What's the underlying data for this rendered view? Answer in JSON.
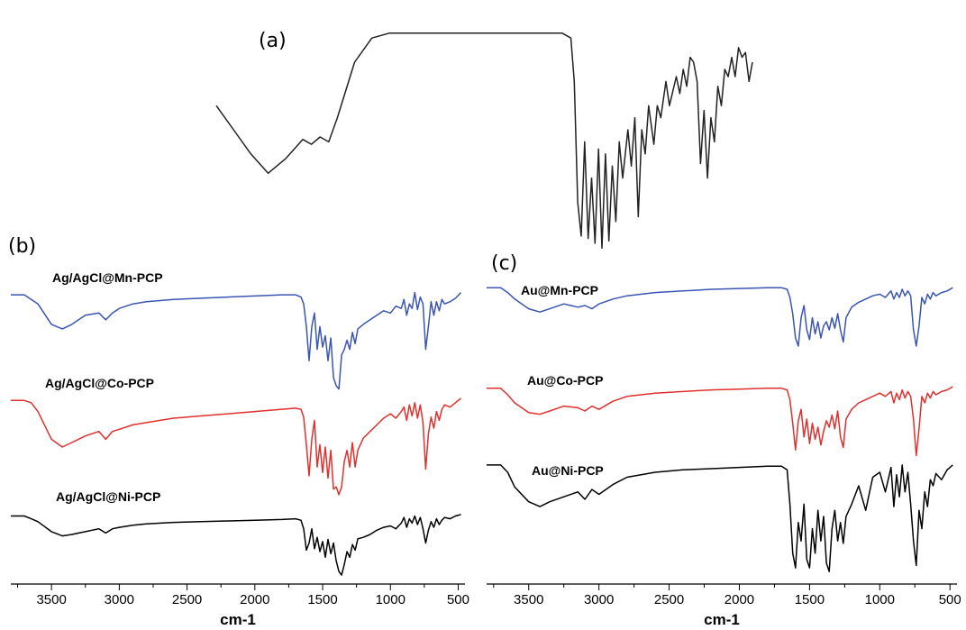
{
  "figure": {
    "panels": [
      {
        "id": "a",
        "label": "(a)",
        "traces": [
          {
            "name": "",
            "color": "#222222"
          }
        ]
      },
      {
        "id": "b",
        "label": "(b)",
        "traces": [
          {
            "name": "Ag/AgCl@Mn-PCP",
            "color": "#3a55b4"
          },
          {
            "name": "Ag/AgCl@Co-PCP",
            "color": "#e0302e"
          },
          {
            "name": "Ag/AgCl@Ni-PCP",
            "color": "#000000"
          }
        ]
      },
      {
        "id": "c",
        "label": "(c)",
        "traces": [
          {
            "name": "Au@Mn-PCP",
            "color": "#3a55b4"
          },
          {
            "name": "Au@Co-PCP",
            "color": "#e0302e"
          },
          {
            "name": "Au@Ni-PCP",
            "color": "#000000"
          }
        ]
      }
    ]
  },
  "chart_data": [
    {
      "type": "line",
      "panel": "(a)",
      "title": "",
      "xlabel": "",
      "ylabel": "",
      "x_axis_shown": false,
      "series": [
        {
          "name": "",
          "x": [
            3700,
            3600,
            3500,
            3400,
            3300,
            3200,
            3150,
            3100,
            3050,
            3000,
            2900,
            2800,
            2700,
            2600,
            2500,
            2400,
            2300,
            2200,
            2100,
            2000,
            1900,
            1800,
            1700,
            1650,
            1630,
            1610,
            1590,
            1570,
            1550,
            1530,
            1510,
            1490,
            1470,
            1450,
            1430,
            1410,
            1390,
            1370,
            1350,
            1320,
            1300,
            1280,
            1260,
            1240,
            1220,
            1200,
            1170,
            1150,
            1130,
            1100,
            1080,
            1060,
            1040,
            1020,
            1000,
            980,
            960,
            940,
            920,
            900,
            880,
            860,
            840,
            820,
            800,
            780,
            760,
            740,
            720,
            700,
            680,
            660,
            640,
            620,
            600
          ],
          "y": [
            60,
            50,
            40,
            32,
            38,
            46,
            44,
            47,
            45,
            55,
            78,
            88,
            90,
            90,
            90,
            90,
            90,
            90,
            90,
            90,
            90,
            90,
            90,
            88,
            70,
            20,
            6,
            45,
            5,
            30,
            3,
            42,
            1,
            40,
            4,
            35,
            12,
            45,
            30,
            50,
            35,
            55,
            14,
            50,
            40,
            60,
            44,
            60,
            55,
            70,
            60,
            66,
            72,
            65,
            75,
            68,
            80,
            78,
            70,
            36,
            58,
            30,
            55,
            45,
            68,
            60,
            75,
            72,
            80,
            72,
            84,
            80,
            82,
            70,
            78
          ]
        }
      ]
    },
    {
      "type": "line",
      "panel": "(b)",
      "title": "",
      "xlabel": "cm-1",
      "ylabel": "",
      "xlim": [
        3800,
        450
      ],
      "x_reversed": true,
      "xticks": [
        3500,
        3000,
        2500,
        2000,
        1500,
        1000,
        500
      ],
      "series": [
        {
          "name": "Ag/AgCl@Mn-PCP",
          "x": [
            3800,
            3700,
            3600,
            3500,
            3420,
            3350,
            3250,
            3150,
            3100,
            3050,
            3000,
            2900,
            2800,
            2600,
            2400,
            2200,
            2000,
            1800,
            1700,
            1660,
            1640,
            1620,
            1600,
            1580,
            1560,
            1540,
            1520,
            1500,
            1480,
            1460,
            1440,
            1420,
            1400,
            1380,
            1360,
            1340,
            1320,
            1300,
            1280,
            1260,
            1240,
            1200,
            1150,
            1100,
            1050,
            1000,
            960,
            920,
            900,
            880,
            860,
            840,
            820,
            800,
            780,
            760,
            740,
            720,
            700,
            680,
            660,
            640,
            620,
            600,
            560,
            520,
            480
          ],
          "y": [
            88,
            88,
            80,
            62,
            58,
            62,
            70,
            72,
            66,
            72,
            76,
            80,
            82,
            84,
            85,
            86,
            87,
            88,
            88,
            86,
            80,
            60,
            30,
            60,
            72,
            40,
            60,
            42,
            52,
            30,
            50,
            15,
            8,
            5,
            35,
            40,
            48,
            40,
            55,
            45,
            58,
            62,
            66,
            70,
            74,
            72,
            78,
            76,
            84,
            70,
            80,
            76,
            90,
            75,
            86,
            80,
            40,
            60,
            82,
            70,
            82,
            74,
            84,
            80,
            82,
            85,
            90
          ]
        },
        {
          "name": "Ag/AgCl@Co-PCP",
          "x": [
            3800,
            3700,
            3650,
            3600,
            3500,
            3420,
            3350,
            3250,
            3150,
            3100,
            3050,
            3000,
            2900,
            2800,
            2600,
            2400,
            2200,
            2000,
            1800,
            1700,
            1660,
            1640,
            1620,
            1600,
            1580,
            1560,
            1540,
            1520,
            1500,
            1480,
            1460,
            1440,
            1420,
            1400,
            1380,
            1360,
            1340,
            1320,
            1300,
            1280,
            1260,
            1240,
            1200,
            1150,
            1100,
            1050,
            1000,
            960,
            920,
            900,
            880,
            860,
            840,
            820,
            800,
            780,
            760,
            740,
            720,
            700,
            680,
            660,
            640,
            620,
            600,
            560,
            520,
            480
          ],
          "y": [
            90,
            90,
            88,
            80,
            55,
            48,
            52,
            58,
            62,
            55,
            62,
            64,
            68,
            70,
            74,
            76,
            78,
            80,
            82,
            83,
            82,
            75,
            50,
            22,
            55,
            72,
            30,
            50,
            25,
            48,
            20,
            45,
            10,
            12,
            5,
            12,
            35,
            45,
            30,
            52,
            30,
            45,
            56,
            62,
            68,
            74,
            78,
            74,
            80,
            84,
            72,
            86,
            76,
            88,
            74,
            86,
            70,
            28,
            60,
            75,
            65,
            80,
            72,
            82,
            86,
            84,
            88,
            92
          ]
        },
        {
          "name": "Ag/AgCl@Ni-PCP",
          "x": [
            3800,
            3700,
            3650,
            3600,
            3500,
            3420,
            3350,
            3250,
            3150,
            3100,
            3050,
            3000,
            2900,
            2800,
            2600,
            2400,
            2200,
            2000,
            1800,
            1700,
            1660,
            1640,
            1620,
            1600,
            1580,
            1560,
            1540,
            1520,
            1500,
            1480,
            1460,
            1440,
            1420,
            1400,
            1380,
            1360,
            1340,
            1320,
            1300,
            1280,
            1260,
            1240,
            1200,
            1150,
            1100,
            1050,
            1000,
            960,
            920,
            900,
            880,
            860,
            840,
            820,
            800,
            780,
            760,
            740,
            720,
            700,
            680,
            660,
            640,
            620,
            600,
            560,
            520,
            480
          ],
          "y": [
            88,
            88,
            84,
            80,
            66,
            60,
            62,
            66,
            70,
            64,
            70,
            72,
            75,
            77,
            79,
            80,
            81,
            82,
            83,
            84,
            82,
            70,
            40,
            50,
            70,
            42,
            58,
            38,
            52,
            30,
            55,
            35,
            50,
            25,
            10,
            5,
            20,
            38,
            30,
            48,
            40,
            56,
            58,
            62,
            68,
            72,
            74,
            70,
            78,
            86,
            72,
            84,
            78,
            88,
            76,
            86,
            70,
            50,
            68,
            80,
            72,
            84,
            76,
            82,
            86,
            84,
            88,
            90
          ]
        }
      ]
    },
    {
      "type": "line",
      "panel": "(c)",
      "title": "",
      "xlabel": "cm-1",
      "ylabel": "",
      "xlim": [
        3800,
        450
      ],
      "x_reversed": true,
      "xticks": [
        3500,
        3000,
        2500,
        2000,
        1500,
        1000,
        500
      ],
      "series": [
        {
          "name": "Au@Mn-PCP",
          "x": [
            3800,
            3700,
            3650,
            3600,
            3500,
            3420,
            3350,
            3250,
            3150,
            3100,
            3050,
            3000,
            2900,
            2800,
            2600,
            2400,
            2200,
            2000,
            1800,
            1700,
            1660,
            1640,
            1620,
            1600,
            1580,
            1560,
            1540,
            1520,
            1500,
            1480,
            1460,
            1440,
            1420,
            1400,
            1380,
            1360,
            1340,
            1320,
            1300,
            1280,
            1260,
            1240,
            1200,
            1150,
            1100,
            1050,
            1000,
            960,
            920,
            900,
            880,
            860,
            840,
            820,
            800,
            780,
            760,
            740,
            720,
            700,
            680,
            660,
            640,
            620,
            600,
            560,
            520,
            480
          ],
          "y": [
            92,
            92,
            86,
            78,
            66,
            62,
            66,
            72,
            68,
            70,
            66,
            72,
            78,
            82,
            86,
            88,
            90,
            91,
            92,
            92,
            90,
            80,
            60,
            30,
            20,
            55,
            70,
            40,
            28,
            55,
            35,
            50,
            30,
            45,
            50,
            40,
            55,
            42,
            60,
            40,
            25,
            55,
            68,
            74,
            78,
            82,
            84,
            80,
            88,
            78,
            86,
            80,
            90,
            82,
            88,
            82,
            40,
            20,
            45,
            80,
            72,
            84,
            78,
            86,
            82,
            86,
            88,
            92
          ]
        },
        {
          "name": "Au@Co-PCP",
          "x": [
            3800,
            3700,
            3650,
            3600,
            3500,
            3420,
            3350,
            3250,
            3150,
            3100,
            3050,
            3000,
            2900,
            2800,
            2600,
            2400,
            2200,
            2000,
            1800,
            1700,
            1660,
            1640,
            1620,
            1600,
            1580,
            1560,
            1540,
            1520,
            1500,
            1480,
            1460,
            1440,
            1420,
            1400,
            1380,
            1360,
            1340,
            1320,
            1300,
            1280,
            1260,
            1240,
            1200,
            1150,
            1100,
            1050,
            1000,
            960,
            920,
            900,
            880,
            860,
            840,
            820,
            800,
            780,
            760,
            740,
            720,
            700,
            680,
            660,
            640,
            620,
            600,
            560,
            520,
            480
          ],
          "y": [
            88,
            88,
            80,
            70,
            58,
            56,
            60,
            66,
            64,
            60,
            66,
            62,
            72,
            78,
            82,
            84,
            86,
            87,
            88,
            88,
            86,
            74,
            45,
            12,
            48,
            62,
            28,
            50,
            20,
            45,
            25,
            40,
            18,
            35,
            48,
            40,
            55,
            38,
            60,
            28,
            15,
            50,
            62,
            70,
            74,
            78,
            82,
            78,
            84,
            70,
            82,
            74,
            86,
            76,
            84,
            78,
            50,
            5,
            38,
            78,
            70,
            82,
            76,
            84,
            80,
            84,
            86,
            90
          ]
        },
        {
          "name": "Au@Ni-PCP",
          "x": [
            3800,
            3700,
            3650,
            3600,
            3500,
            3420,
            3350,
            3250,
            3150,
            3100,
            3050,
            3000,
            2900,
            2800,
            2600,
            2400,
            2200,
            2000,
            1800,
            1700,
            1660,
            1640,
            1620,
            1600,
            1580,
            1560,
            1540,
            1520,
            1500,
            1480,
            1460,
            1440,
            1420,
            1400,
            1380,
            1360,
            1340,
            1320,
            1300,
            1280,
            1260,
            1240,
            1200,
            1150,
            1100,
            1050,
            1000,
            960,
            920,
            900,
            880,
            860,
            840,
            820,
            800,
            780,
            760,
            740,
            720,
            700,
            680,
            660,
            640,
            620,
            600,
            560,
            520,
            480
          ],
          "y": [
            92,
            92,
            86,
            74,
            62,
            58,
            62,
            66,
            70,
            64,
            72,
            68,
            76,
            82,
            86,
            88,
            89,
            90,
            91,
            91,
            88,
            60,
            20,
            8,
            45,
            30,
            60,
            15,
            8,
            40,
            20,
            55,
            30,
            50,
            12,
            5,
            40,
            55,
            30,
            45,
            28,
            50,
            60,
            75,
            55,
            82,
            86,
            70,
            90,
            58,
            84,
            66,
            92,
            70,
            86,
            60,
            30,
            10,
            55,
            40,
            70,
            58,
            80,
            75,
            85,
            80,
            88,
            92
          ]
        }
      ]
    }
  ]
}
